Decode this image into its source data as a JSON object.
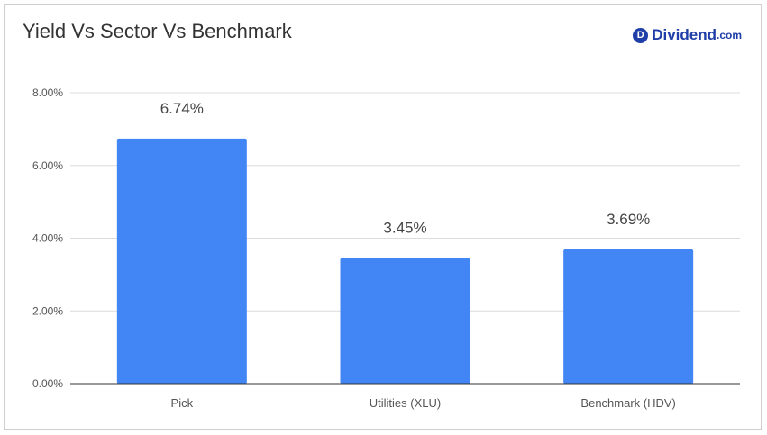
{
  "title": "Yield Vs Sector Vs Benchmark",
  "logo": {
    "mark": "D",
    "word": "Dividend",
    "suffix": ".com",
    "color": "#1f3ea8"
  },
  "colors": {
    "bar": "#4285f4",
    "grid": "#dcdcdc",
    "axis": "#333333",
    "tick_text": "#555555",
    "label_text": "#444444"
  },
  "chart_data": {
    "type": "bar",
    "title": "Yield Vs Sector Vs Benchmark",
    "categories": [
      "Pick",
      "Utilities (XLU)",
      "Benchmark (HDV)"
    ],
    "values": [
      6.74,
      3.45,
      3.69
    ],
    "data_labels": [
      "6.74%",
      "3.45%",
      "3.69%"
    ],
    "y_ticks": [
      0,
      2,
      4,
      6,
      8
    ],
    "y_tick_labels": [
      "0.00%",
      "2.00%",
      "4.00%",
      "6.00%",
      "8.00%"
    ],
    "ylim": [
      0,
      8
    ],
    "xlabel": "",
    "ylabel": "",
    "grid": true,
    "legend": "none"
  }
}
